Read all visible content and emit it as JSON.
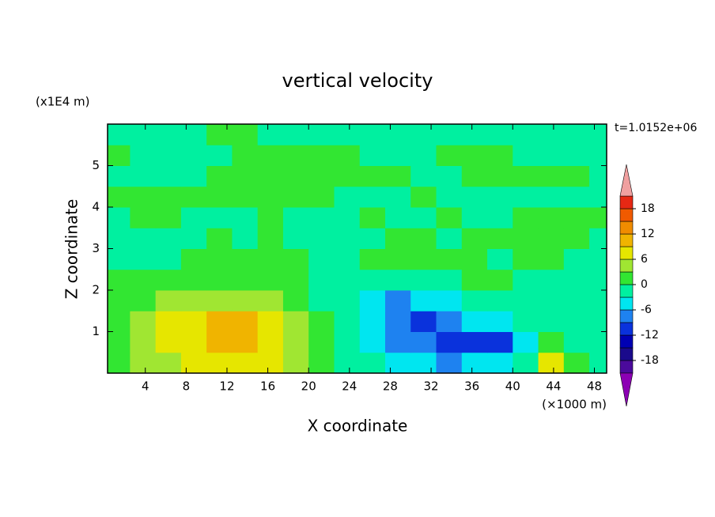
{
  "chart_data": {
    "type": "contour",
    "title": "vertical velocity",
    "x_label": "X coordinate",
    "y_label": "Z coordinate",
    "x_unit": "(×1000 m)",
    "y_unit": "(x1E4 m)",
    "annotation": "t=1.0152e+06",
    "xlim": [
      0.3,
      49.2
    ],
    "ylim": [
      0,
      6
    ],
    "xticks": [
      4,
      8,
      12,
      16,
      20,
      24,
      28,
      32,
      36,
      40,
      44,
      48
    ],
    "yticks": [
      1,
      2,
      3,
      4,
      5
    ],
    "x": [
      1.25,
      3.75,
      6.25,
      8.75,
      11.25,
      13.75,
      16.25,
      18.75,
      21.25,
      23.75,
      26.25,
      28.75,
      31.25,
      33.75,
      36.25,
      38.75,
      41.25,
      43.75,
      46.25,
      48.75
    ],
    "y": [
      0.25,
      0.75,
      1.25,
      1.75,
      2.25,
      2.75,
      3.25,
      3.75,
      4.25,
      4.75,
      5.25,
      5.75
    ],
    "z": [
      [
        1,
        3,
        4,
        6,
        7,
        7,
        6,
        4,
        1,
        -1,
        -3,
        -4,
        -6,
        -7,
        -6,
        -4,
        -2,
        7,
        1,
        -1
      ],
      [
        2,
        4,
        6,
        8,
        10,
        10,
        7,
        5,
        2,
        -2,
        -5,
        -8,
        -9,
        -11,
        -10,
        -12,
        -6,
        1,
        -1,
        -1
      ],
      [
        1,
        4,
        6,
        8,
        10,
        9,
        7,
        4,
        1,
        -3,
        -6,
        -9,
        -10,
        -8,
        -5,
        -5,
        -3,
        -1,
        -1,
        -1
      ],
      [
        1,
        2,
        3,
        4,
        4,
        4,
        3,
        2,
        -1,
        -3,
        -6,
        -8,
        -6,
        -4,
        -3,
        -2,
        -2,
        -1,
        -1,
        -1
      ],
      [
        1,
        1,
        1,
        1,
        1,
        1,
        1,
        0.5,
        -1,
        -2,
        -3,
        -2,
        -1,
        -2,
        1,
        1,
        -1,
        -1,
        -1,
        -1
      ],
      [
        -1,
        -1,
        -1,
        1,
        1,
        1,
        1,
        1,
        -1,
        -1,
        1,
        1,
        1,
        1,
        1,
        -1,
        1,
        1,
        -1,
        -1
      ],
      [
        -1,
        -1,
        -1,
        -1,
        1,
        -1,
        1,
        -1,
        -1,
        -1,
        -1,
        1,
        1,
        -1,
        1,
        1,
        1,
        1,
        1,
        -1
      ],
      [
        -1,
        1,
        1,
        -1,
        -1,
        -1,
        1,
        -1,
        -1,
        -1,
        1,
        -1,
        -1,
        1,
        -1,
        -1,
        1,
        1,
        1,
        1
      ],
      [
        1,
        1,
        1,
        1,
        1,
        1,
        1,
        1,
        1,
        -1,
        -1,
        -1,
        1,
        -1,
        -1,
        -1,
        -1,
        -1,
        -1,
        -1
      ],
      [
        -1,
        -1,
        -1,
        -1,
        1,
        1,
        1,
        1,
        1,
        1,
        1,
        1,
        -1,
        -1,
        1,
        1,
        1,
        1,
        1,
        -1
      ],
      [
        1,
        -1,
        -1,
        -1,
        -1,
        1,
        1,
        1,
        1,
        1,
        -1,
        -1,
        -1,
        1,
        1,
        1,
        -1,
        -1,
        -1,
        -1
      ],
      [
        -1,
        -1,
        -1,
        -1,
        1,
        1,
        -1,
        -1,
        -1,
        -1,
        -1,
        -1,
        -1,
        -1,
        -1,
        -1,
        -1,
        -1,
        -1,
        -1
      ]
    ],
    "levels": [
      -21,
      -18,
      -15,
      -12,
      -9,
      -6,
      -3,
      0,
      3,
      6,
      9,
      12,
      15,
      18,
      21
    ],
    "colors": [
      "#4b0a9c",
      "#1a0a8c",
      "#0000b4",
      "#0a32dc",
      "#1e82f0",
      "#00e6f0",
      "#00f0a0",
      "#32e632",
      "#a0e632",
      "#e6e600",
      "#f0b400",
      "#f08c00",
      "#f05a00",
      "#e62814"
    ],
    "under_color": "#8c00b4",
    "over_color": "#f0a0a0",
    "colorbar_ticks": [
      -18,
      -12,
      -6,
      0,
      6,
      12,
      18
    ]
  }
}
